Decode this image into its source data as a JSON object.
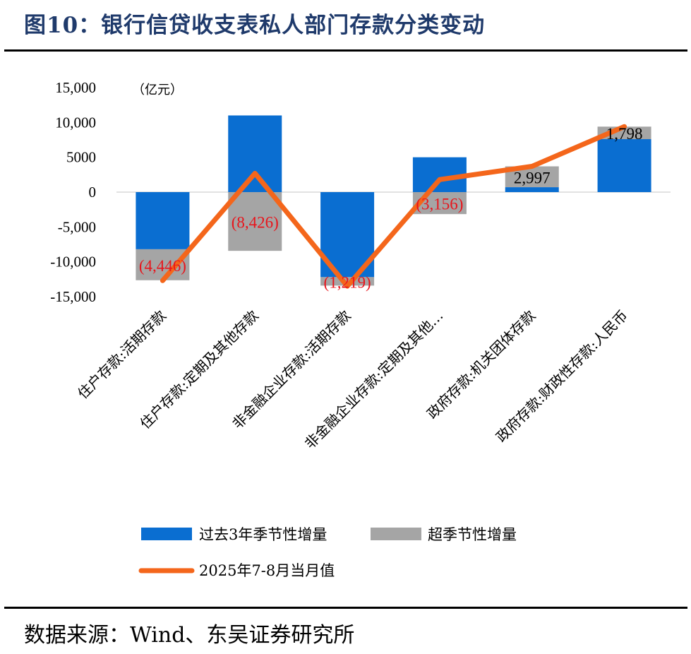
{
  "title": "图10：银行信贷收支表私人部门存款分类变动",
  "source": "数据来源：Wind、东吴证券研究所",
  "chart_data": {
    "type": "bar",
    "unit_label": "（亿元）",
    "categories": [
      "住户存款:活期存款",
      "住户存款:定期及其他存款",
      "非金融企业存款:活期存款",
      "非金融企业存款:定期及其他…",
      "政府存款:机关团体存款",
      "政府存款:财政性存款:人民币"
    ],
    "series": [
      {
        "name": "过去3年季节性增量",
        "kind": "bar",
        "color": "#0a6ed1",
        "values": [
          -8200,
          11000,
          -12200,
          5000,
          700,
          7600
        ]
      },
      {
        "name": "超季节性增量",
        "kind": "bar",
        "color": "#a5a5a5",
        "values": [
          -4446,
          -8426,
          -1219,
          -3156,
          2997,
          1798
        ]
      },
      {
        "name": "2025年7-8月当月值",
        "kind": "line",
        "color": "#f4661b",
        "values": [
          -12700,
          2700,
          -13500,
          1800,
          3700,
          9400
        ]
      }
    ],
    "data_labels": [
      "(4,446)",
      "(8,426)",
      "(1,219)",
      "(3,156)",
      "2,997",
      "1,798"
    ],
    "data_label_colors": [
      "#e8151c",
      "#e8151c",
      "#e8151c",
      "#e8151c",
      "#000000",
      "#000000"
    ],
    "y_ticks": [
      "15,000",
      "10,000",
      "5000",
      "0",
      "-5,000",
      "-10,000",
      "-15,000"
    ],
    "y_tick_values": [
      15000,
      10000,
      5000,
      0,
      -5000,
      -10000,
      -15000
    ],
    "ylim": [
      -15000,
      15000
    ],
    "grid": false,
    "legend_position": "bottom"
  }
}
